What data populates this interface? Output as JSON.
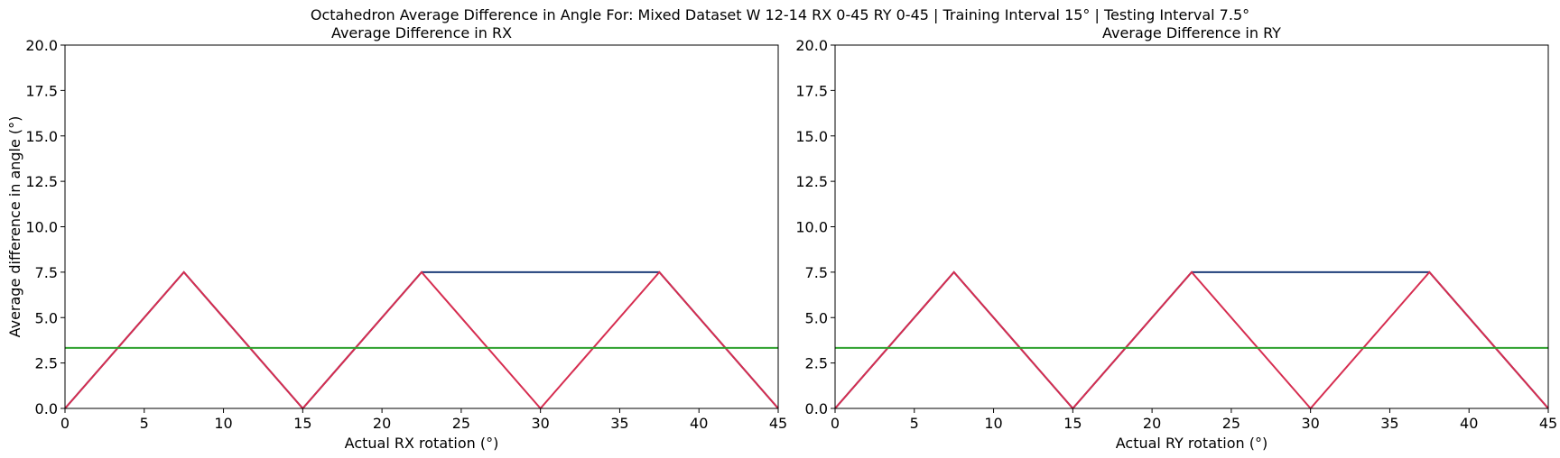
{
  "figure_title": "Octahedron Average Difference in Angle For: Mixed Dataset W 12-14 RX 0-45 RY 0-45 | Training Interval 15° | Testing Interval 7.5°",
  "colors": {
    "blue": "#1f3f7a",
    "red": "#d62d50",
    "green": "#2ca02c",
    "axis": "#000000"
  },
  "chart_data": [
    {
      "type": "line",
      "title": "Average Difference in RX",
      "xlabel": "Actual RX rotation (°)",
      "ylabel": "Average difference in angle (°)",
      "xlim": [
        0,
        45
      ],
      "ylim": [
        0,
        20
      ],
      "xticks": [
        0,
        5,
        10,
        15,
        20,
        25,
        30,
        35,
        40,
        45
      ],
      "yticks": [
        0.0,
        2.5,
        5.0,
        7.5,
        10.0,
        12.5,
        15.0,
        17.5,
        20.0
      ],
      "ytick_labels": [
        "0.0",
        "2.5",
        "5.0",
        "7.5",
        "10.0",
        "12.5",
        "15.0",
        "17.5",
        "20.0"
      ],
      "grid": false,
      "series": [
        {
          "color": "#1f3f7a",
          "x": [
            0,
            7.5,
            15,
            22.5,
            30,
            37.5,
            45
          ],
          "y": [
            0,
            7.5,
            0,
            7.5,
            7.5,
            7.5,
            0
          ]
        },
        {
          "color": "#d62d50",
          "x": [
            0,
            7.5,
            15,
            22.5,
            30,
            37.5,
            45
          ],
          "y": [
            0,
            7.5,
            0,
            7.5,
            0,
            7.5,
            0
          ]
        },
        {
          "color": "#2ca02c",
          "x": [
            0,
            45
          ],
          "y": [
            3.33,
            3.33
          ]
        }
      ]
    },
    {
      "type": "line",
      "title": "Average Difference in RY",
      "xlabel": "Actual RY rotation (°)",
      "ylabel": "",
      "xlim": [
        0,
        45
      ],
      "ylim": [
        0,
        20
      ],
      "xticks": [
        0,
        5,
        10,
        15,
        20,
        25,
        30,
        35,
        40,
        45
      ],
      "yticks": [
        0.0,
        2.5,
        5.0,
        7.5,
        10.0,
        12.5,
        15.0,
        17.5,
        20.0
      ],
      "ytick_labels": [
        "0.0",
        "2.5",
        "5.0",
        "7.5",
        "10.0",
        "12.5",
        "15.0",
        "17.5",
        "20.0"
      ],
      "grid": false,
      "series": [
        {
          "color": "#1f3f7a",
          "x": [
            0,
            7.5,
            15,
            22.5,
            30,
            37.5,
            45
          ],
          "y": [
            0,
            7.5,
            0,
            7.5,
            7.5,
            7.5,
            0
          ]
        },
        {
          "color": "#d62d50",
          "x": [
            0,
            7.5,
            15,
            22.5,
            30,
            37.5,
            45
          ],
          "y": [
            0,
            7.5,
            0,
            7.5,
            0,
            7.5,
            0
          ]
        },
        {
          "color": "#2ca02c",
          "x": [
            0,
            45
          ],
          "y": [
            3.33,
            3.33
          ]
        }
      ]
    }
  ]
}
